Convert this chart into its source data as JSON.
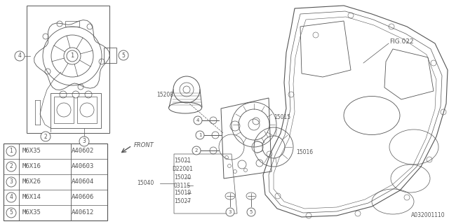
{
  "bg_color": "#ffffff",
  "line_color": "#555555",
  "fig_ref": "FIG.022",
  "part_number": "A032001110",
  "legend_items": [
    {
      "num": "1",
      "spec": "M6X35",
      "code": "A40602"
    },
    {
      "num": "2",
      "spec": "M6X16",
      "code": "A40603"
    },
    {
      "num": "3",
      "spec": "M6X26",
      "code": "A40604"
    },
    {
      "num": "4",
      "spec": "M6X14",
      "code": "A40606"
    },
    {
      "num": "5",
      "spec": "M6X35",
      "code": "A40612"
    }
  ],
  "font_size_label": 5.5,
  "font_size_legend": 6.5,
  "font_size_figref": 6.5,
  "font_size_partnum": 5.5
}
